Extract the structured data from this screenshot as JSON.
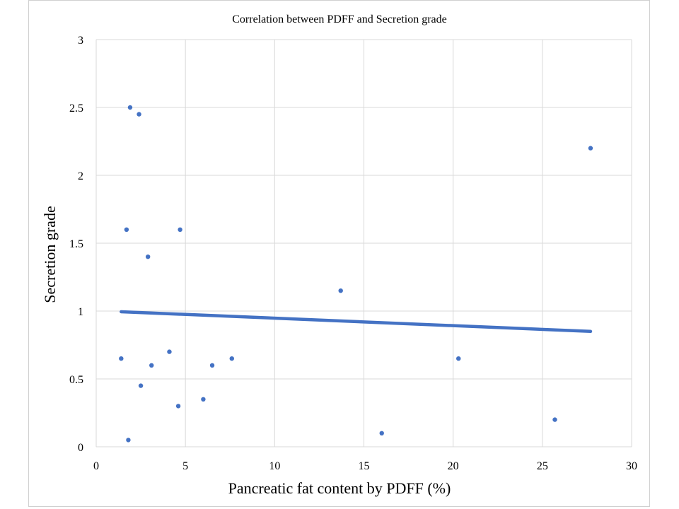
{
  "chart_data": {
    "type": "scatter",
    "title": "Correlation between PDFF and Secretion grade",
    "xlabel": "Pancreatic fat content by PDFF (%)",
    "ylabel": "Secretion grade",
    "xlim": [
      0,
      30
    ],
    "ylim": [
      0,
      3
    ],
    "x_ticks": [
      0,
      5,
      10,
      15,
      20,
      25,
      30
    ],
    "x_tick_labels": [
      "0",
      "5",
      "10",
      "15",
      "20",
      "25",
      "30"
    ],
    "y_ticks": [
      0,
      0.5,
      1,
      1.5,
      2,
      2.5,
      3
    ],
    "y_tick_labels": [
      "0",
      "0.5",
      "1",
      "1.5",
      "2",
      "2.5",
      "3"
    ],
    "grid": true,
    "point_color": "#4472c4",
    "trendline_color": "#4472c4",
    "series": [
      {
        "name": "Secretion grade",
        "x": [
          1.4,
          1.7,
          1.8,
          1.9,
          2.4,
          2.5,
          2.9,
          3.1,
          4.1,
          4.6,
          4.7,
          6.0,
          6.5,
          7.6,
          13.7,
          16.0,
          20.3,
          25.7,
          27.7
        ],
        "y": [
          0.65,
          1.6,
          0.05,
          2.5,
          2.45,
          0.45,
          1.4,
          0.6,
          0.7,
          0.3,
          1.6,
          0.35,
          0.6,
          0.65,
          1.15,
          0.1,
          0.65,
          0.2,
          2.2
        ]
      }
    ],
    "trendline": {
      "type": "linear",
      "x": [
        1.4,
        27.7
      ],
      "y": [
        0.995,
        0.85
      ]
    }
  }
}
